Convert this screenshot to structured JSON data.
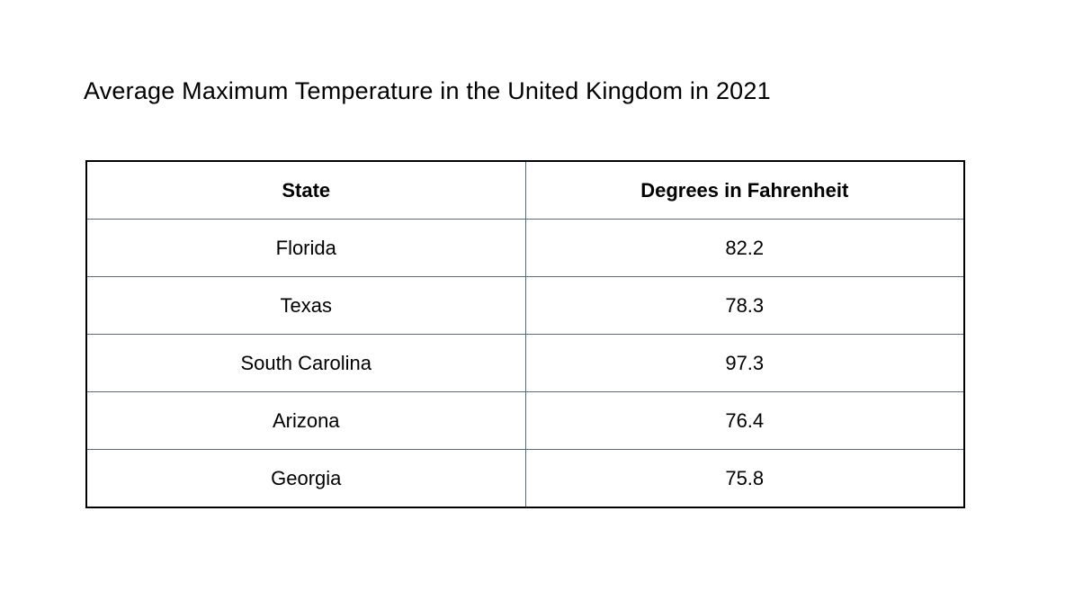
{
  "title": "Average Maximum Temperature in the United Kingdom in 2021",
  "table": {
    "columns": [
      "State",
      "Degrees in Fahrenheit"
    ],
    "rows": [
      {
        "state": "Florida",
        "degrees": "82.2"
      },
      {
        "state": "Texas",
        "degrees": "78.3"
      },
      {
        "state": "South Carolina",
        "degrees": "97.3"
      },
      {
        "state": "Arizona",
        "degrees": "76.4"
      },
      {
        "state": "Georgia",
        "degrees": "75.8"
      }
    ]
  },
  "colors": {
    "background": "#ffffff",
    "text": "#000000",
    "outer_border": "#000000",
    "inner_border": "#546a76"
  },
  "chart_data": {
    "type": "table",
    "title": "Average Maximum Temperature in the United Kingdom in 2021",
    "columns": [
      "State",
      "Degrees in Fahrenheit"
    ],
    "categories": [
      "Florida",
      "Texas",
      "South Carolina",
      "Arizona",
      "Georgia"
    ],
    "values": [
      82.2,
      78.3,
      97.3,
      76.4,
      75.8
    ]
  }
}
